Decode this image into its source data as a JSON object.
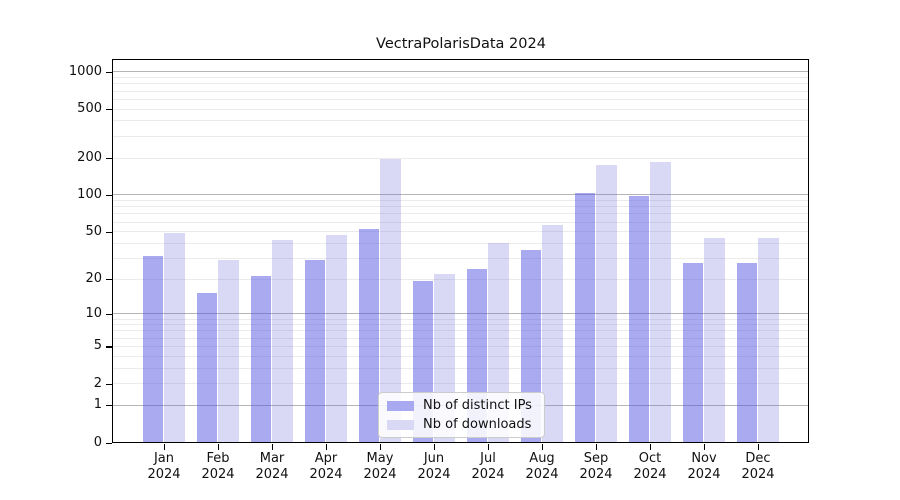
{
  "title": "VectraPolarisData 2024",
  "chart_data": {
    "type": "bar",
    "title": "VectraPolarisData 2024",
    "categories": [
      "Jan\n2024",
      "Feb\n2024",
      "Mar\n2024",
      "Apr\n2024",
      "May\n2024",
      "Jun\n2024",
      "Jul\n2024",
      "Aug\n2024",
      "Sep\n2024",
      "Oct\n2024",
      "Nov\n2024",
      "Dec\n2024"
    ],
    "series": [
      {
        "name": "Nb of distinct IPs",
        "color": "#a9a9f1",
        "fill": "rgba(85,85,228,0.5)",
        "values": [
          31,
          15,
          21,
          29,
          52,
          19,
          24,
          35,
          102,
          97,
          27,
          27
        ]
      },
      {
        "name": "Nb of downloads",
        "color": "#d9d9f6",
        "fill": "rgba(103,103,219,0.25)",
        "values": [
          48,
          29,
          42,
          46,
          195,
          22,
          40,
          56,
          175,
          183,
          44,
          44
        ]
      }
    ],
    "xlabel": "",
    "ylabel": "",
    "y_scale": "log1p",
    "ylim": [
      0,
      1230
    ],
    "y_ticks": [
      0,
      1,
      2,
      5,
      10,
      20,
      50,
      100,
      200,
      500,
      1000
    ],
    "major_gridlines": [
      1,
      10,
      100,
      1000
    ],
    "minor_gridlines": [
      2,
      3,
      4,
      5,
      6,
      7,
      8,
      9,
      20,
      30,
      40,
      50,
      60,
      70,
      80,
      90,
      200,
      300,
      400,
      500,
      600,
      700,
      800,
      900
    ],
    "grid": "horizontal",
    "legend_position": "lower center"
  },
  "legend": {
    "items": [
      {
        "label": "Nb of distinct IPs",
        "color": "#a9a9f1"
      },
      {
        "label": "Nb of downloads",
        "color": "#d9d9f6"
      }
    ]
  }
}
